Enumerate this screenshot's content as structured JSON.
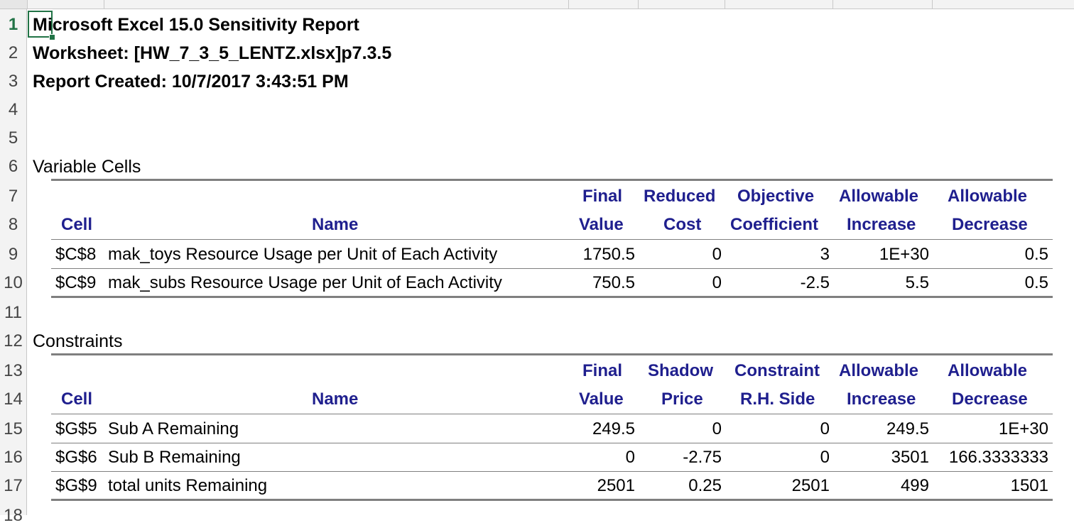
{
  "row_numbers": [
    "1",
    "2",
    "3",
    "4",
    "5",
    "6",
    "7",
    "8",
    "9",
    "10",
    "11",
    "12",
    "13",
    "14",
    "15",
    "16",
    "17",
    "18"
  ],
  "report": {
    "title": "Microsoft Excel 15.0 Sensitivity Report",
    "worksheet": "Worksheet: [HW_7_3_5_LENTZ.xlsx]p7.3.5",
    "created": "Report Created: 10/7/2017 3:43:51 PM"
  },
  "variable_cells": {
    "section_label": "Variable Cells",
    "headers_top": [
      "Final",
      "Reduced",
      "Objective",
      "Allowable",
      "Allowable"
    ],
    "headers_bottom": [
      "Cell",
      "Name",
      "Value",
      "Cost",
      "Coefficient",
      "Increase",
      "Decrease"
    ],
    "rows": [
      {
        "cell": "$C$8",
        "name": "mak_toys Resource Usage per Unit of Each Activity",
        "final": "1750.5",
        "reduced": "0",
        "objective": "3",
        "inc": "1E+30",
        "dec": "0.5"
      },
      {
        "cell": "$C$9",
        "name": "mak_subs Resource Usage per Unit of Each Activity",
        "final": "750.5",
        "reduced": "0",
        "objective": "-2.5",
        "inc": "5.5",
        "dec": "0.5"
      }
    ]
  },
  "constraints": {
    "section_label": "Constraints",
    "headers_top": [
      "Final",
      "Shadow",
      "Constraint",
      "Allowable",
      "Allowable"
    ],
    "headers_bottom": [
      "Cell",
      "Name",
      "Value",
      "Price",
      "R.H. Side",
      "Increase",
      "Decrease"
    ],
    "rows": [
      {
        "cell": "$G$5",
        "name": "Sub A Remaining",
        "final": "249.5",
        "shadow": "0",
        "rhs": "0",
        "inc": "249.5",
        "dec": "1E+30"
      },
      {
        "cell": "$G$6",
        "name": "Sub B Remaining",
        "final": "0",
        "shadow": "-2.75",
        "rhs": "0",
        "inc": "3501",
        "dec": "166.3333333"
      },
      {
        "cell": "$G$9",
        "name": "total units Remaining",
        "final": "2501",
        "shadow": "0.25",
        "rhs": "2501",
        "inc": "499",
        "dec": "1501"
      }
    ]
  },
  "colors": {
    "header_text": "#1f1f8e",
    "selection": "#217346"
  }
}
